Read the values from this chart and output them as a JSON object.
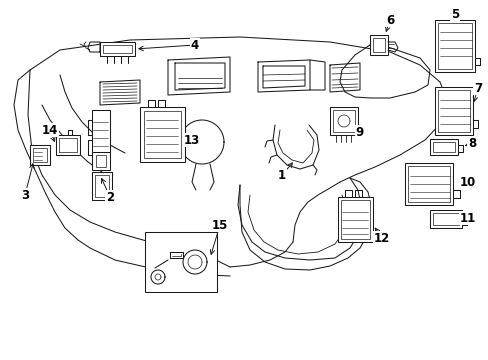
{
  "bg_color": "#ffffff",
  "line_color": "#1a1a1a",
  "label_color": "#000000",
  "font_size": 8.5,
  "lw": 0.75
}
